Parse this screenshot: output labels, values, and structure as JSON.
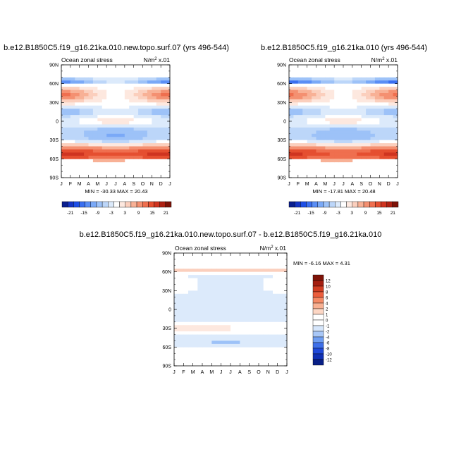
{
  "panels": [
    {
      "id": "p1",
      "title": "b.e12.B1850C5.f19_g16.21ka.010.new.topo.surf.07 (yrs 496-544)",
      "left_label": "Ocean zonal stress",
      "units_base": "N/m",
      "units_exp": "2",
      "units_suffix": " x.01",
      "minmax": "MIN = -30.33 MAX = 20.43"
    },
    {
      "id": "p2",
      "title": "b.e12.B1850C5.f19_g16.21ka.010 (yrs 496-544)",
      "left_label": "Ocean zonal stress",
      "units_base": "N/m",
      "units_exp": "2",
      "units_suffix": " x.01",
      "minmax": "MIN = -17.81 MAX = 20.48"
    },
    {
      "id": "p3",
      "title": "b.e12.B1850C5.f19_g16.21ka.010.new.topo.surf.07 - b.e12.B1850C5.f19_g16.21ka.010",
      "left_label": "Ocean zonal stress",
      "units_base": "N/m",
      "units_exp": "2",
      "units_suffix": " x.01",
      "minmax": "MIN =  -6.16 MAX =  4.31"
    }
  ],
  "chart_data": [
    {
      "type": "heatmap",
      "title": "b.e12.B1850C5.f19_g16.21ka.010.new.topo.surf.07 (yrs 496-544)",
      "x_ticks": [
        "J",
        "F",
        "M",
        "A",
        "M",
        "J",
        "J",
        "A",
        "S",
        "O",
        "N",
        "D",
        "J"
      ],
      "y_ticks": [
        "90N",
        "60N",
        "30N",
        "0",
        "30S",
        "60S",
        "90S"
      ],
      "ylim": [
        -90,
        90
      ],
      "min": -30.33,
      "max": 20.43,
      "description": "Monthly zonal-mean ocean zonal stress vs latitude",
      "colorbar_labels": [
        "-21",
        "-15",
        "-9",
        "-3",
        "3",
        "9",
        "15",
        "21"
      ],
      "contour_levels": [
        -24,
        -21,
        -18,
        -15,
        -12,
        -9,
        -6,
        -3,
        0,
        3,
        6,
        9,
        12,
        15,
        18,
        21,
        24
      ]
    },
    {
      "type": "heatmap",
      "title": "b.e12.B1850C5.f19_g16.21ka.010 (yrs 496-544)",
      "x_ticks": [
        "J",
        "F",
        "M",
        "A",
        "M",
        "J",
        "J",
        "A",
        "S",
        "O",
        "N",
        "D",
        "J"
      ],
      "y_ticks": [
        "90N",
        "60N",
        "30N",
        "0",
        "30S",
        "60S",
        "90S"
      ],
      "ylim": [
        -90,
        90
      ],
      "min": -17.81,
      "max": 20.48,
      "colorbar_labels": [
        "-21",
        "-15",
        "-9",
        "-3",
        "3",
        "9",
        "15",
        "21"
      ],
      "contour_levels": [
        -24,
        -21,
        -18,
        -15,
        -12,
        -9,
        -6,
        -3,
        0,
        3,
        6,
        9,
        12,
        15,
        18,
        21,
        24
      ]
    },
    {
      "type": "heatmap",
      "title": "b.e12.B1850C5.f19_g16.21ka.010.new.topo.surf.07 - b.e12.B1850C5.f19_g16.21ka.010",
      "x_ticks": [
        "J",
        "F",
        "M",
        "A",
        "M",
        "J",
        "J",
        "A",
        "S",
        "O",
        "N",
        "D",
        "J"
      ],
      "y_ticks": [
        "90N",
        "60N",
        "30N",
        "0",
        "30S",
        "60S",
        "90S"
      ],
      "ylim": [
        -90,
        90
      ],
      "min": -6.16,
      "max": 4.31,
      "colorbar_labels": [
        "12",
        "10",
        "8",
        "6",
        "4",
        "2",
        "1",
        "0",
        "-1",
        "-2",
        "-4",
        "-6",
        "-8",
        "-10",
        "-12"
      ]
    }
  ],
  "colors": {
    "blue_ramp": [
      "#0a1f8f",
      "#1535c4",
      "#1e4fe6",
      "#3a6ff0",
      "#5a8ef5",
      "#7aa9f7",
      "#9dc2f8",
      "#bcd6f9",
      "#dceafb"
    ],
    "red_ramp": [
      "#fde8df",
      "#fbcfbd",
      "#f8b196",
      "#f49071",
      "#ef6f4f",
      "#e54f30",
      "#cf3420",
      "#ae2113",
      "#7e1308"
    ],
    "neutral": "#ffffff",
    "diff_scale": [
      "#7e1308",
      "#a41e10",
      "#d13d22",
      "#ec5e3d",
      "#f48a66",
      "#f8b092",
      "#fcd6c4",
      "#ffffff",
      "#d6e6fb",
      "#a8c7f7",
      "#6f9ef2",
      "#3e6fe9",
      "#1f48d8",
      "#1030b4",
      "#081f86"
    ]
  }
}
